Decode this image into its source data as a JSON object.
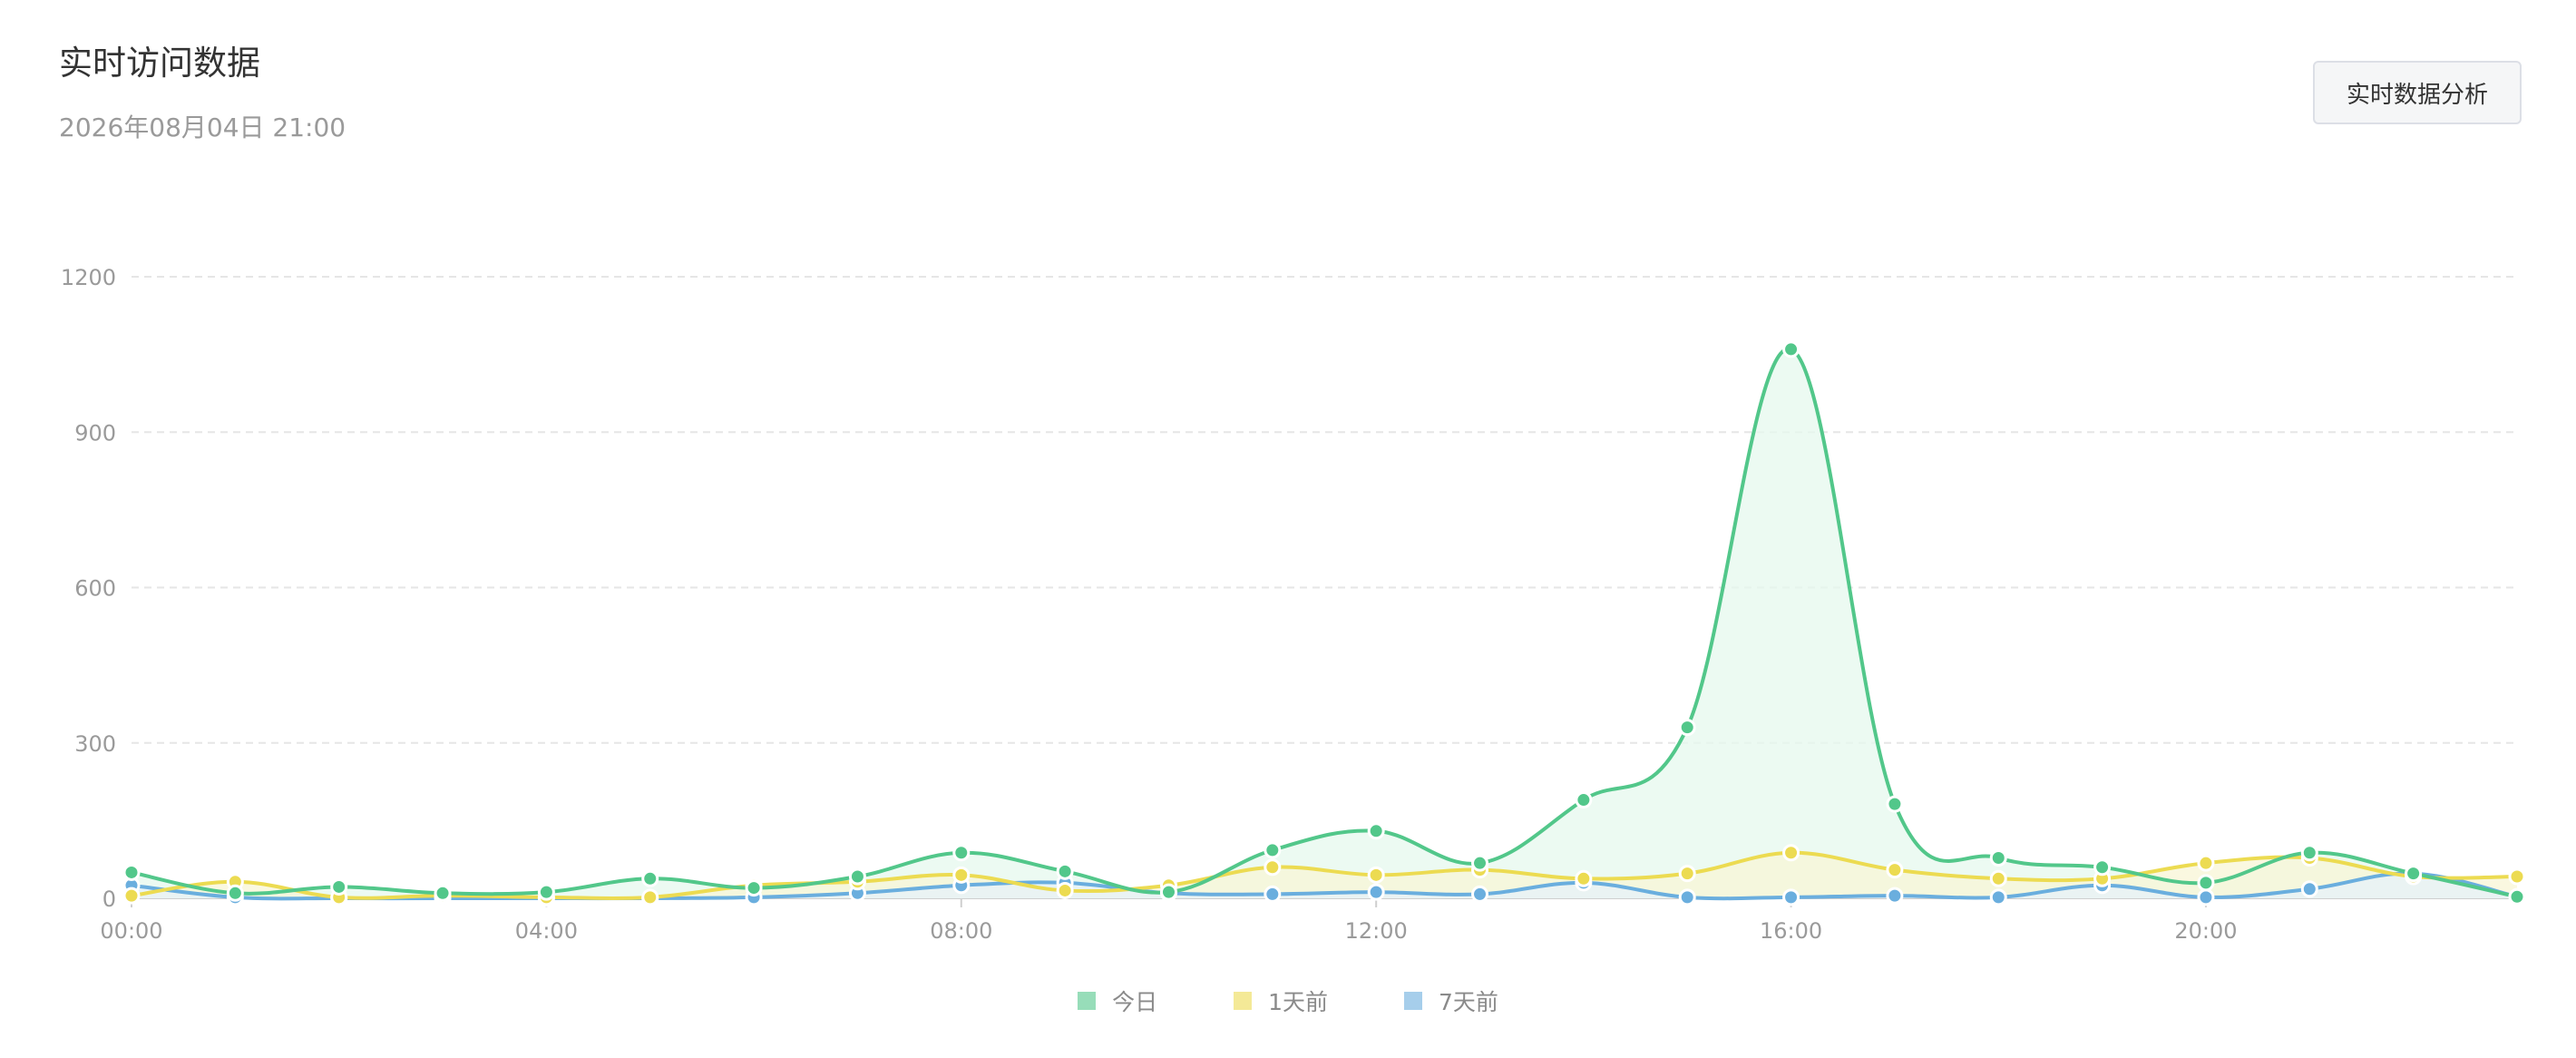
{
  "header": {
    "title": "实时访问数据",
    "subtitle": "2026年08月04日 21:00",
    "action_label": "实时数据分析"
  },
  "chart_data": {
    "type": "line",
    "x": [
      "00:00",
      "01:00",
      "02:00",
      "03:00",
      "04:00",
      "05:00",
      "06:00",
      "07:00",
      "08:00",
      "09:00",
      "10:00",
      "11:00",
      "12:00",
      "13:00",
      "14:00",
      "15:00",
      "16:00",
      "17:00",
      "18:00",
      "19:00",
      "20:00",
      "21:00",
      "22:00",
      "23:00"
    ],
    "xticks": [
      "00:00",
      "04:00",
      "08:00",
      "12:00",
      "16:00",
      "20:00"
    ],
    "yticks": [
      "0",
      "300",
      "600",
      "900",
      "1200"
    ],
    "ylim": [
      0,
      1200
    ],
    "grid": true,
    "legend_position": "bottom-center",
    "series": [
      {
        "name": "今日",
        "color": "#52c78a",
        "area_color": "#e6f8ee",
        "values": [
          50,
          10,
          22,
          10,
          12,
          38,
          20,
          42,
          88,
          52,
          12,
          93,
          130,
          68,
          190,
          330,
          1060,
          182,
          78,
          60,
          30,
          88,
          48,
          3
        ]
      },
      {
        "name": "1天前",
        "color": "#ecdb51",
        "area_color": "#f8f5d6",
        "values": [
          5,
          32,
          2,
          5,
          2,
          2,
          25,
          32,
          45,
          15,
          25,
          60,
          45,
          55,
          38,
          48,
          88,
          55,
          38,
          38,
          68,
          78,
          42,
          42
        ]
      },
      {
        "name": "7天前",
        "color": "#6aaede",
        "area_color": "#e6f1fa",
        "values": [
          25,
          2,
          0,
          0,
          0,
          0,
          2,
          10,
          25,
          30,
          10,
          8,
          12,
          8,
          30,
          2,
          2,
          5,
          2,
          25,
          2,
          18,
          48,
          3
        ]
      }
    ]
  }
}
